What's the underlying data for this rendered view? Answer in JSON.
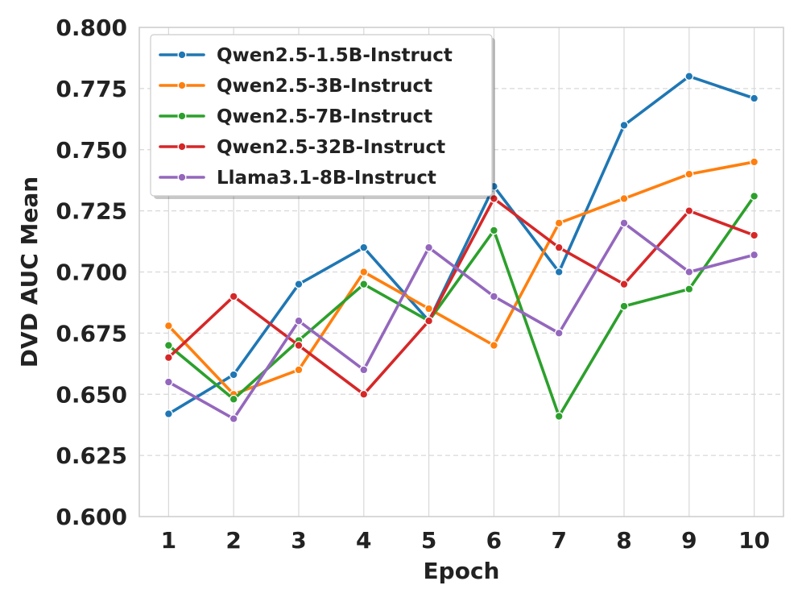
{
  "chart_data": {
    "type": "line",
    "title": "",
    "xlabel": "Epoch",
    "ylabel": "DVD AUC Mean",
    "x": [
      1,
      2,
      3,
      4,
      5,
      6,
      7,
      8,
      9,
      10
    ],
    "xlim": [
      0.55,
      10.45
    ],
    "ylim": [
      0.6,
      0.8
    ],
    "yticks": [
      0.6,
      0.625,
      0.65,
      0.675,
      0.7,
      0.725,
      0.75,
      0.775,
      0.8
    ],
    "ytick_labels": [
      "0.600",
      "0.625",
      "0.650",
      "0.675",
      "0.700",
      "0.725",
      "0.750",
      "0.775",
      "0.800"
    ],
    "xtick_labels": [
      "1",
      "2",
      "3",
      "4",
      "5",
      "6",
      "7",
      "8",
      "9",
      "10"
    ],
    "grid": true,
    "legend_position": "top-left",
    "series": [
      {
        "name": "Qwen2.5-1.5B-Instruct",
        "color": "#1f77b4",
        "values": [
          0.642,
          0.658,
          0.695,
          0.71,
          0.68,
          0.735,
          0.7,
          0.76,
          0.78,
          0.771
        ]
      },
      {
        "name": "Qwen2.5-3B-Instruct",
        "color": "#ff7f0e",
        "values": [
          0.678,
          0.65,
          0.66,
          0.7,
          0.685,
          0.67,
          0.72,
          0.73,
          0.74,
          0.745
        ]
      },
      {
        "name": "Qwen2.5-7B-Instruct",
        "color": "#2ca02c",
        "values": [
          0.67,
          0.648,
          0.672,
          0.695,
          0.68,
          0.717,
          0.641,
          0.686,
          0.693,
          0.731
        ]
      },
      {
        "name": "Qwen2.5-32B-Instruct",
        "color": "#d62728",
        "values": [
          0.665,
          0.69,
          0.67,
          0.65,
          0.68,
          0.73,
          0.71,
          0.695,
          0.725,
          0.715
        ]
      },
      {
        "name": "Llama3.1-8B-Instruct",
        "color": "#9467bd",
        "values": [
          0.655,
          0.64,
          0.68,
          0.66,
          0.71,
          0.69,
          0.675,
          0.72,
          0.7,
          0.707
        ]
      }
    ]
  }
}
